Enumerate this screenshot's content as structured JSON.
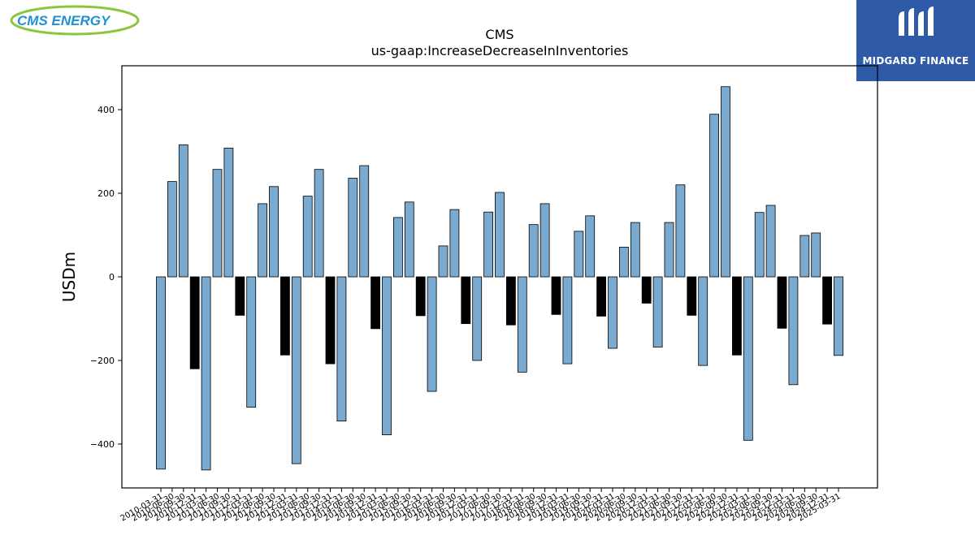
{
  "branding": {
    "left_logo_text": "CMS ENERGY",
    "right_logo_text": "MIDGARD FINANCE"
  },
  "colors": {
    "bar_default": "#7aaad0",
    "bar_q4": "#000000",
    "edge": "#000000",
    "logo_left_blue": "#1f8fd6",
    "logo_left_green": "#8cc63f",
    "logo_right_bg": "#2f5aa8"
  },
  "chart_data": {
    "type": "bar",
    "title": "CMS",
    "subtitle": "us-gaap:IncreaseDecreaseInInventories",
    "xlabel": "",
    "ylabel": "USDm",
    "ylim": [
      -505,
      505
    ],
    "yticks": [
      -400,
      -200,
      0,
      200,
      400
    ],
    "grid": false,
    "categories": [
      "2010-03-31",
      "2010-06-30",
      "2010-09-30",
      "2010-12-31",
      "2011-03-31",
      "2011-06-30",
      "2011-09-30",
      "2011-12-31",
      "2012-03-31",
      "2012-06-30",
      "2012-09-30",
      "2012-12-31",
      "2013-03-31",
      "2013-06-30",
      "2013-09-30",
      "2013-12-31",
      "2014-03-31",
      "2014-06-30",
      "2014-09-30",
      "2014-12-31",
      "2015-03-31",
      "2015-06-30",
      "2015-09-30",
      "2015-12-31",
      "2016-03-31",
      "2016-06-30",
      "2016-09-30",
      "2016-12-31",
      "2017-03-31",
      "2017-06-30",
      "2017-09-30",
      "2017-12-31",
      "2018-03-31",
      "2018-06-30",
      "2018-09-30",
      "2018-12-31",
      "2019-03-31",
      "2019-06-30",
      "2019-09-30",
      "2019-12-31",
      "2020-03-31",
      "2020-06-30",
      "2020-09-30",
      "2020-12-31",
      "2021-03-31",
      "2021-06-30",
      "2021-09-30",
      "2021-12-31",
      "2022-03-31",
      "2022-06-30",
      "2022-09-30",
      "2022-12-31",
      "2023-03-31",
      "2023-06-30",
      "2023-09-30",
      "2023-12-31",
      "2024-03-31",
      "2024-06-30",
      "2024-09-30",
      "2024-12-31",
      "2025-03-31"
    ],
    "values": [
      -460,
      228,
      316,
      -220,
      -462,
      257,
      308,
      -92,
      -312,
      175,
      216,
      -187,
      -447,
      193,
      257,
      -208,
      -345,
      236,
      266,
      -124,
      -378,
      142,
      179,
      -93,
      -274,
      74,
      161,
      -112,
      -200,
      155,
      202,
      -115,
      -228,
      125,
      175,
      -90,
      -208,
      109,
      146,
      -94,
      -171,
      71,
      130,
      -63,
      -168,
      130,
      220,
      -92,
      -212,
      389,
      455,
      -187,
      -391,
      154,
      171,
      -123,
      -258,
      99,
      105,
      -113,
      -188
    ]
  }
}
